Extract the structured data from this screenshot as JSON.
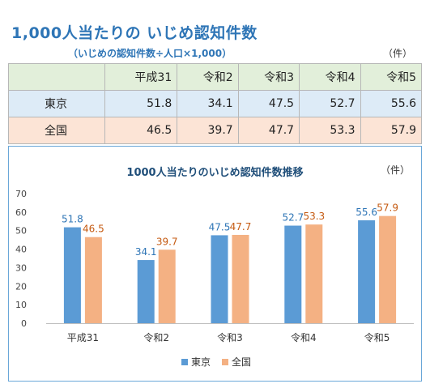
{
  "title": "1,000人当たりの いじめ認知件数",
  "subtitle": "（いじめの認知件数÷人口×1,000）",
  "table_unit": "（件）",
  "table": {
    "headers": [
      "",
      "平成31",
      "令和2",
      "令和3",
      "令和4",
      "令和5"
    ],
    "rows": [
      {
        "label": "東京",
        "values": [
          "51.8",
          "34.1",
          "47.5",
          "52.7",
          "55.6"
        ]
      },
      {
        "label": "全国",
        "values": [
          "46.5",
          "39.7",
          "47.7",
          "53.3",
          "57.9"
        ]
      }
    ]
  },
  "chart_unit": "（件）",
  "chart_data": {
    "type": "bar",
    "title": "1000人当たりのいじめ認知件数推移",
    "categories": [
      "平成31",
      "令和2",
      "令和3",
      "令和4",
      "令和5"
    ],
    "series": [
      {
        "name": "東京",
        "values": [
          51.8,
          34.1,
          47.5,
          52.7,
          55.6
        ],
        "color": "#5b9bd5",
        "label_color": "#2e75b6"
      },
      {
        "name": "全国",
        "values": [
          46.5,
          39.7,
          47.7,
          53.3,
          57.9
        ],
        "color": "#f4b183",
        "label_color": "#c55a11"
      }
    ],
    "ylim": [
      0,
      70
    ],
    "yticks": [
      0,
      10,
      20,
      30,
      40,
      50,
      60,
      70
    ],
    "grid": false,
    "legend": "bottom"
  }
}
